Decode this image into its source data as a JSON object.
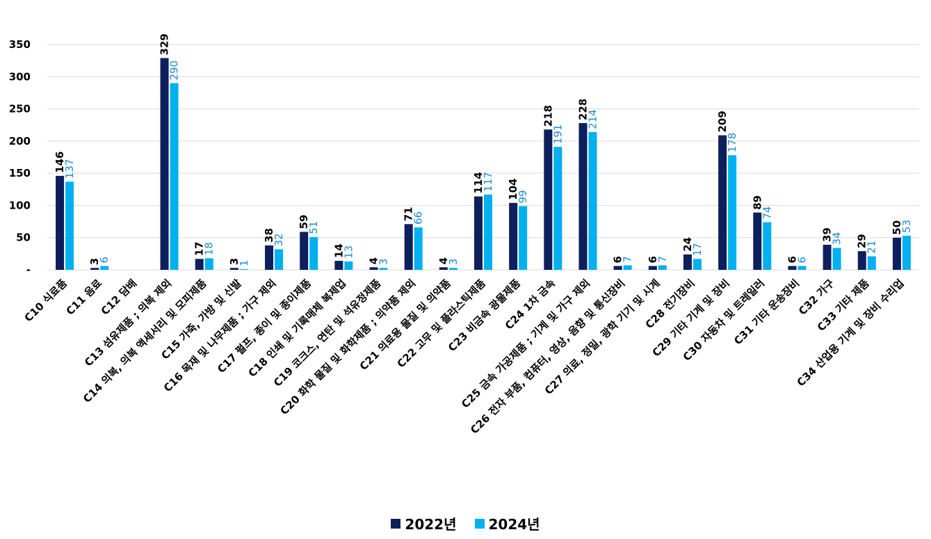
{
  "chart_data": {
    "type": "bar",
    "title": "",
    "xlabel": "",
    "ylabel": "",
    "ylim": [
      0,
      350
    ],
    "yticks": [
      0,
      50,
      100,
      150,
      200,
      250,
      300,
      350
    ],
    "ytick_labels": [
      "-",
      "50",
      "100",
      "150",
      "200",
      "250",
      "300",
      "350"
    ],
    "grid": true,
    "legend_position": "bottom",
    "categories": [
      "C10 식료품",
      "C11 음료",
      "C12 담배",
      "C13 섬유제품 ; 의복 제외",
      "C14 의복, 의복 액세서리 및 모피제품",
      "C15 가죽, 가방 및 신발",
      "C16 목재 및 나무제품 ; 가구 제외",
      "C17 펄프, 종이 및 종이제품",
      "C18 인쇄 및 기록매체 복제업",
      "C19 코크스, 연탄 및 석유정제품",
      "C20 화학 물질 및 화학제품 ; 의약품 제외",
      "C21 의료용 물질 및 의약품",
      "C22 고무 및 플라스틱제품",
      "C23 비금속 광물제품",
      "C24 1차 금속",
      "C25 금속 가공제품 ; 기계 및 가구 제외",
      "C26 전자 부품, 컴퓨터, 영상, 음향 및 통신장비",
      "C27 의료, 정밀, 광학 기기 및 시계",
      "C28 전기장비",
      "C29 기타 기계 및 장비",
      "C30 자동차 및 트레일러",
      "C31 기타 운송장비",
      "C32 가구",
      "C33 기타 제품",
      "C34 산업용 기계 및 장비 수리업"
    ],
    "series": [
      {
        "name": "2022년",
        "color": "#0d1f5c",
        "values": [
          146,
          3,
          null,
          329,
          17,
          3,
          38,
          59,
          14,
          4,
          71,
          4,
          114,
          104,
          218,
          228,
          6,
          6,
          24,
          209,
          89,
          6,
          39,
          29,
          50
        ]
      },
      {
        "name": "2024년",
        "color": "#00b0f0",
        "values": [
          137,
          6,
          null,
          290,
          18,
          1,
          32,
          51,
          13,
          3,
          66,
          3,
          117,
          99,
          191,
          214,
          7,
          7,
          17,
          178,
          74,
          6,
          34,
          21,
          53
        ]
      }
    ]
  }
}
